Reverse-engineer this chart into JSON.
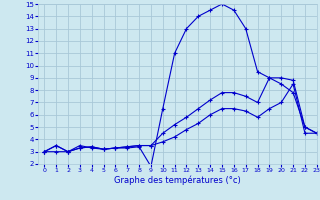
{
  "xlabel": "Graphe des températures (°c)",
  "background_color": "#cde8f0",
  "grid_color": "#a8c8d8",
  "line_color": "#0000cc",
  "hours": [
    0,
    1,
    2,
    3,
    4,
    5,
    6,
    7,
    8,
    9,
    10,
    11,
    12,
    13,
    14,
    15,
    16,
    17,
    18,
    19,
    20,
    21,
    22,
    23
  ],
  "line1": [
    3.0,
    3.0,
    3.0,
    3.5,
    3.3,
    3.2,
    3.3,
    3.3,
    3.4,
    1.8,
    6.5,
    11.0,
    13.0,
    14.0,
    14.5,
    15.0,
    14.5,
    13.0,
    9.5,
    9.0,
    8.5,
    7.8,
    5.0,
    4.5
  ],
  "line2": [
    3.0,
    3.5,
    3.0,
    3.3,
    3.4,
    3.2,
    3.3,
    3.4,
    3.5,
    3.5,
    4.5,
    5.2,
    5.8,
    6.5,
    7.2,
    7.8,
    7.8,
    7.5,
    7.0,
    9.0,
    9.0,
    8.8,
    5.0,
    4.5
  ],
  "line3": [
    3.0,
    3.5,
    3.0,
    3.3,
    3.4,
    3.2,
    3.3,
    3.4,
    3.5,
    3.5,
    3.8,
    4.2,
    4.8,
    5.3,
    6.0,
    6.5,
    6.5,
    6.3,
    5.8,
    6.5,
    7.0,
    8.5,
    4.5,
    4.5
  ],
  "ylim": [
    2,
    15
  ],
  "yticks": [
    2,
    3,
    4,
    5,
    6,
    7,
    8,
    9,
    10,
    11,
    12,
    13,
    14,
    15
  ],
  "xlim": [
    -0.5,
    23
  ],
  "xticks": [
    0,
    1,
    2,
    3,
    4,
    5,
    6,
    7,
    8,
    9,
    10,
    11,
    12,
    13,
    14,
    15,
    16,
    17,
    18,
    19,
    20,
    21,
    22,
    23
  ]
}
